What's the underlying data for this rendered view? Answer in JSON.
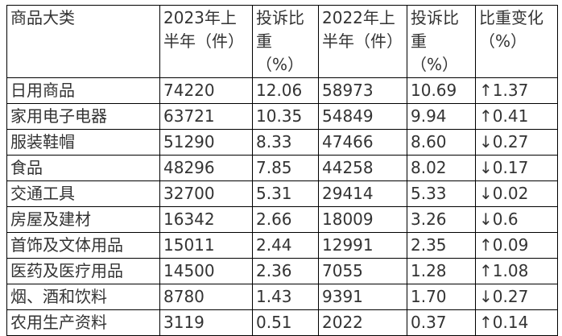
{
  "colors": {
    "border": "#000000",
    "text": "#333333",
    "background": "#ffffff"
  },
  "table": {
    "headers": {
      "category": "商品大类",
      "count_2023": "2023年上\n半年（件）",
      "share_2023": "投诉比\n重\n（%）",
      "count_2022": "2022年上\n半年（件）",
      "share_2022": "投诉比\n重\n（%）",
      "change": "比重变化\n（%）"
    },
    "rows": [
      {
        "category": "日用商品",
        "count_2023": "74220",
        "share_2023": "12.06",
        "count_2022": "58973",
        "share_2022": "10.69",
        "change": "↑1.37"
      },
      {
        "category": "家用电子电器",
        "count_2023": "63721",
        "share_2023": "10.35",
        "count_2022": "54849",
        "share_2022": "9.94",
        "change": "↑0.41"
      },
      {
        "category": "服装鞋帽",
        "count_2023": "51290",
        "share_2023": "8.33",
        "count_2022": "47466",
        "share_2022": "8.60",
        "change": "↓0.27"
      },
      {
        "category": "食品",
        "count_2023": "48296",
        "share_2023": "7.85",
        "count_2022": "44258",
        "share_2022": "8.02",
        "change": "↓0.17"
      },
      {
        "category": "交通工具",
        "count_2023": "32700",
        "share_2023": "5.31",
        "count_2022": "29414",
        "share_2022": "5.33",
        "change": "↓0.02"
      },
      {
        "category": "房屋及建材",
        "count_2023": "16342",
        "share_2023": "2.66",
        "count_2022": "18009",
        "share_2022": "3.26",
        "change": "↓0.6"
      },
      {
        "category": "首饰及文体用品",
        "count_2023": "15011",
        "share_2023": "2.44",
        "count_2022": "12991",
        "share_2022": "2.35",
        "change": "↑0.09"
      },
      {
        "category": "医药及医疗用品",
        "count_2023": "14500",
        "share_2023": "2.36",
        "count_2022": "7055",
        "share_2022": "1.28",
        "change": "↑1.08"
      },
      {
        "category": "烟、酒和饮料",
        "count_2023": "8780",
        "share_2023": "1.43",
        "count_2022": "9391",
        "share_2022": "1.70",
        "change": "↓0.27"
      },
      {
        "category": "农用生产资料",
        "count_2023": "3119",
        "share_2023": "0.51",
        "count_2022": "2022",
        "share_2022": "0.37",
        "change": "↑0.14"
      }
    ]
  }
}
